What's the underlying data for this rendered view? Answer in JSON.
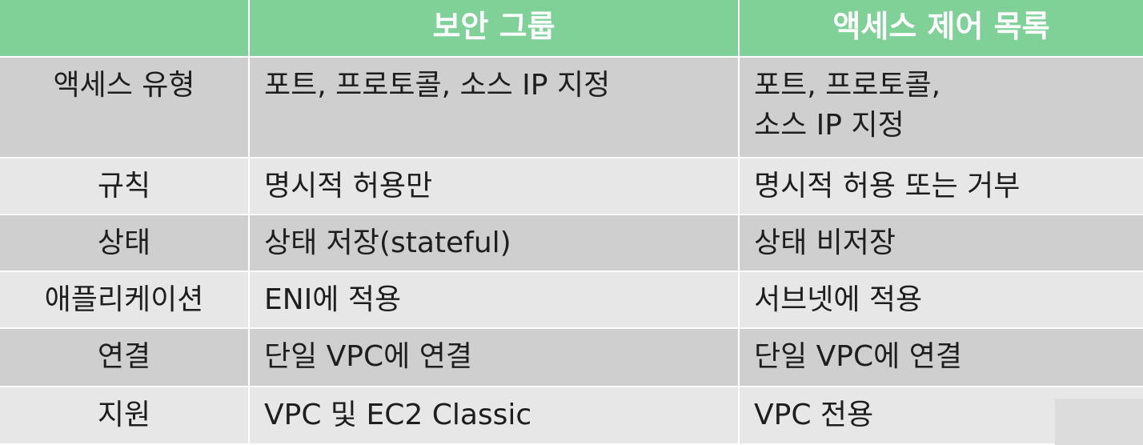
{
  "header": {
    "col0": "",
    "col1": "보안 그룹",
    "col2": "액세스 제어 목록"
  },
  "rows": [
    {
      "label": "액세스 유형",
      "sg": "포트, 프로토콜, 소스 IP 지정",
      "acl": "포트, 프로토콜,\n소스 IP 지정"
    },
    {
      "label": "규칙",
      "sg": "명시적 허용만",
      "acl": "명시적 허용 또는 거부"
    },
    {
      "label": "상태",
      "sg": "상태 저장(stateful)",
      "acl": "상태 비저장"
    },
    {
      "label": "애플리케이션",
      "sg": "ENI에 적용",
      "acl": "서브넷에 적용"
    },
    {
      "label": "연결",
      "sg": "단일 VPC에 연결",
      "acl": "단일 VPC에 연결"
    },
    {
      "label": "지원",
      "sg": "VPC 및 EC2 Classic",
      "acl": "VPC 전용"
    }
  ],
  "colors": {
    "header": "#7fd198",
    "row_dark": "#cfcfcf",
    "row_light": "#e7e7e7",
    "text": "#1e1e1e"
  }
}
